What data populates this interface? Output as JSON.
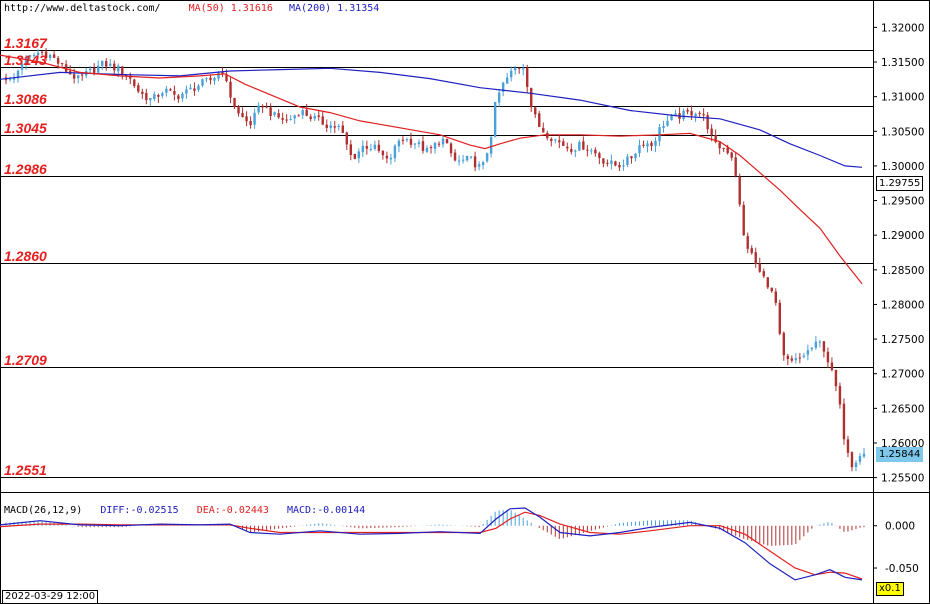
{
  "header": {
    "site": "http://www.deltastock.com/",
    "ma50_label": "MA(50)",
    "ma50_value": "1.31616",
    "ma200_label": "MA(200)",
    "ma200_value": "1.31354"
  },
  "macd_header": {
    "name": "MACD(26,12,9)",
    "diff_label": "DIFF:-0.02515",
    "dea_label": "DEA:-0.02443",
    "macd_label": "MACD:-0.00144"
  },
  "footer": {
    "datetime": "2022-03-29 12:00",
    "zoom": "x0.1"
  },
  "colors": {
    "bull": "#4aa0d8",
    "bear": "#b03030",
    "ma50": "#e02020",
    "ma200": "#2020c0",
    "level_text": "#e81e1e",
    "current_badge": "#7ec8ec"
  },
  "chart_data": {
    "type": "candlestick",
    "ylim": [
      1.2535,
      1.3228
    ],
    "yticks": [
      "1.32000",
      "1.31500",
      "1.31000",
      "1.30500",
      "1.30000",
      "1.29500",
      "1.29000",
      "1.28500",
      "1.28000",
      "1.27500",
      "1.27000",
      "1.26500",
      "1.26000",
      "1.25500"
    ],
    "levels": [
      {
        "label": "1.3167",
        "value": 1.3167
      },
      {
        "label": "1.3143",
        "value": 1.3143
      },
      {
        "label": "1.3086",
        "value": 1.3086
      },
      {
        "label": "1.3045",
        "value": 1.3045
      },
      {
        "label": "1.2986",
        "value": 1.2986
      },
      {
        "label": "1.2860",
        "value": 1.286
      },
      {
        "label": "1.2709",
        "value": 1.2709
      },
      {
        "label": "1.2551",
        "value": 1.2551
      }
    ],
    "price_badges": [
      {
        "text": "1.29755",
        "value": 1.29755,
        "style": "outline"
      },
      {
        "text": "1.25844",
        "value": 1.25844,
        "style": "filled"
      }
    ],
    "close_path": [
      [
        0,
        1.3135
      ],
      [
        12,
        1.312
      ],
      [
        22,
        1.315
      ],
      [
        34,
        1.316
      ],
      [
        40,
        1.3165
      ],
      [
        52,
        1.3158
      ],
      [
        64,
        1.314
      ],
      [
        78,
        1.3125
      ],
      [
        92,
        1.3138
      ],
      [
        104,
        1.3148
      ],
      [
        118,
        1.314
      ],
      [
        128,
        1.313
      ],
      [
        140,
        1.3105
      ],
      [
        152,
        1.3095
      ],
      [
        164,
        1.311
      ],
      [
        176,
        1.31
      ],
      [
        188,
        1.3108
      ],
      [
        200,
        1.3118
      ],
      [
        212,
        1.3125
      ],
      [
        222,
        1.314
      ],
      [
        228,
        1.311
      ],
      [
        238,
        1.3075
      ],
      [
        250,
        1.306
      ],
      [
        262,
        1.309
      ],
      [
        274,
        1.3072
      ],
      [
        288,
        1.3065
      ],
      [
        300,
        1.308
      ],
      [
        312,
        1.307
      ],
      [
        326,
        1.306
      ],
      [
        340,
        1.3055
      ],
      [
        352,
        1.301
      ],
      [
        364,
        1.303
      ],
      [
        376,
        1.3025
      ],
      [
        388,
        1.3005
      ],
      [
        400,
        1.304
      ],
      [
        414,
        1.3035
      ],
      [
        428,
        1.302
      ],
      [
        442,
        1.304
      ],
      [
        456,
        1.3005
      ],
      [
        470,
        1.301
      ],
      [
        482,
        1.2995
      ],
      [
        490,
        1.3035
      ],
      [
        496,
        1.3095
      ],
      [
        504,
        1.312
      ],
      [
        514,
        1.314
      ],
      [
        524,
        1.3145
      ],
      [
        532,
        1.308
      ],
      [
        540,
        1.3055
      ],
      [
        548,
        1.3045
      ],
      [
        558,
        1.3035
      ],
      [
        570,
        1.3025
      ],
      [
        582,
        1.303
      ],
      [
        594,
        1.302
      ],
      [
        606,
        1.3005
      ],
      [
        618,
        1.3
      ],
      [
        630,
        1.301
      ],
      [
        642,
        1.3035
      ],
      [
        652,
        1.303
      ],
      [
        662,
        1.306
      ],
      [
        674,
        1.307
      ],
      [
        686,
        1.3075
      ],
      [
        698,
        1.308
      ],
      [
        706,
        1.3065
      ],
      [
        714,
        1.303
      ],
      [
        726,
        1.3025
      ],
      [
        734,
        1.301
      ],
      [
        738,
        1.296
      ],
      [
        744,
        1.2895
      ],
      [
        752,
        1.287
      ],
      [
        760,
        1.2845
      ],
      [
        768,
        1.283
      ],
      [
        776,
        1.28
      ],
      [
        782,
        1.2725
      ],
      [
        790,
        1.2715
      ],
      [
        798,
        1.272
      ],
      [
        806,
        1.273
      ],
      [
        814,
        1.274
      ],
      [
        822,
        1.2745
      ],
      [
        830,
        1.271
      ],
      [
        838,
        1.267
      ],
      [
        844,
        1.261
      ],
      [
        852,
        1.257
      ],
      [
        860,
        1.2584
      ]
    ],
    "ma50": [
      [
        0,
        1.316
      ],
      [
        40,
        1.315
      ],
      [
        80,
        1.3135
      ],
      [
        120,
        1.313
      ],
      [
        160,
        1.3127
      ],
      [
        200,
        1.313
      ],
      [
        225,
        1.3133
      ],
      [
        245,
        1.3118
      ],
      [
        275,
        1.31
      ],
      [
        300,
        1.3085
      ],
      [
        330,
        1.3077
      ],
      [
        360,
        1.3065
      ],
      [
        400,
        1.3055
      ],
      [
        440,
        1.3045
      ],
      [
        470,
        1.303
      ],
      [
        485,
        1.3025
      ],
      [
        500,
        1.3032
      ],
      [
        520,
        1.304
      ],
      [
        545,
        1.3045
      ],
      [
        580,
        1.3045
      ],
      [
        620,
        1.3043
      ],
      [
        660,
        1.3045
      ],
      [
        690,
        1.3047
      ],
      [
        720,
        1.3035
      ],
      [
        740,
        1.3015
      ],
      [
        760,
        1.299
      ],
      [
        780,
        1.2965
      ],
      [
        800,
        1.2937
      ],
      [
        820,
        1.291
      ],
      [
        840,
        1.287
      ],
      [
        862,
        1.283
      ]
    ],
    "ma200": [
      [
        0,
        1.3125
      ],
      [
        60,
        1.3135
      ],
      [
        120,
        1.3132
      ],
      [
        180,
        1.313
      ],
      [
        230,
        1.3137
      ],
      [
        280,
        1.3139
      ],
      [
        330,
        1.3141
      ],
      [
        380,
        1.3135
      ],
      [
        430,
        1.3126
      ],
      [
        480,
        1.3113
      ],
      [
        530,
        1.3105
      ],
      [
        580,
        1.3095
      ],
      [
        630,
        1.308
      ],
      [
        680,
        1.3072
      ],
      [
        720,
        1.3068
      ],
      [
        760,
        1.3052
      ],
      [
        790,
        1.3032
      ],
      [
        820,
        1.3015
      ],
      [
        845,
        1.3
      ],
      [
        862,
        1.2998
      ]
    ],
    "macd": {
      "ylim": [
        -0.076,
        0.034
      ],
      "yticks": [
        "0.000",
        "-0.050"
      ],
      "diff": [
        [
          0,
          0.001
        ],
        [
          40,
          0.006
        ],
        [
          80,
          0.001
        ],
        [
          120,
          0.0
        ],
        [
          160,
          0.002
        ],
        [
          200,
          0.001
        ],
        [
          230,
          0.002
        ],
        [
          250,
          -0.008
        ],
        [
          280,
          -0.01
        ],
        [
          320,
          -0.006
        ],
        [
          360,
          -0.01
        ],
        [
          400,
          -0.009
        ],
        [
          440,
          -0.007
        ],
        [
          480,
          -0.009
        ],
        [
          496,
          0.008
        ],
        [
          510,
          0.02
        ],
        [
          525,
          0.021
        ],
        [
          540,
          0.01
        ],
        [
          560,
          -0.008
        ],
        [
          590,
          -0.012
        ],
        [
          620,
          -0.008
        ],
        [
          650,
          -0.002
        ],
        [
          690,
          0.004
        ],
        [
          720,
          -0.003
        ],
        [
          745,
          -0.02
        ],
        [
          770,
          -0.045
        ],
        [
          795,
          -0.064
        ],
        [
          815,
          -0.058
        ],
        [
          830,
          -0.052
        ],
        [
          845,
          -0.061
        ],
        [
          862,
          -0.064
        ]
      ],
      "dea": [
        [
          0,
          -0.001
        ],
        [
          40,
          0.002
        ],
        [
          80,
          0.002
        ],
        [
          120,
          0.001
        ],
        [
          160,
          0.001
        ],
        [
          200,
          0.001
        ],
        [
          230,
          0.001
        ],
        [
          250,
          -0.003
        ],
        [
          280,
          -0.008
        ],
        [
          320,
          -0.008
        ],
        [
          360,
          -0.008
        ],
        [
          400,
          -0.008
        ],
        [
          440,
          -0.008
        ],
        [
          480,
          -0.008
        ],
        [
          496,
          -0.003
        ],
        [
          510,
          0.008
        ],
        [
          525,
          0.016
        ],
        [
          540,
          0.012
        ],
        [
          560,
          0.002
        ],
        [
          590,
          -0.008
        ],
        [
          620,
          -0.01
        ],
        [
          650,
          -0.006
        ],
        [
          690,
          0.0
        ],
        [
          720,
          0.0
        ],
        [
          745,
          -0.01
        ],
        [
          770,
          -0.03
        ],
        [
          795,
          -0.05
        ],
        [
          815,
          -0.058
        ],
        [
          830,
          -0.055
        ],
        [
          845,
          -0.056
        ],
        [
          862,
          -0.063
        ]
      ]
    }
  }
}
